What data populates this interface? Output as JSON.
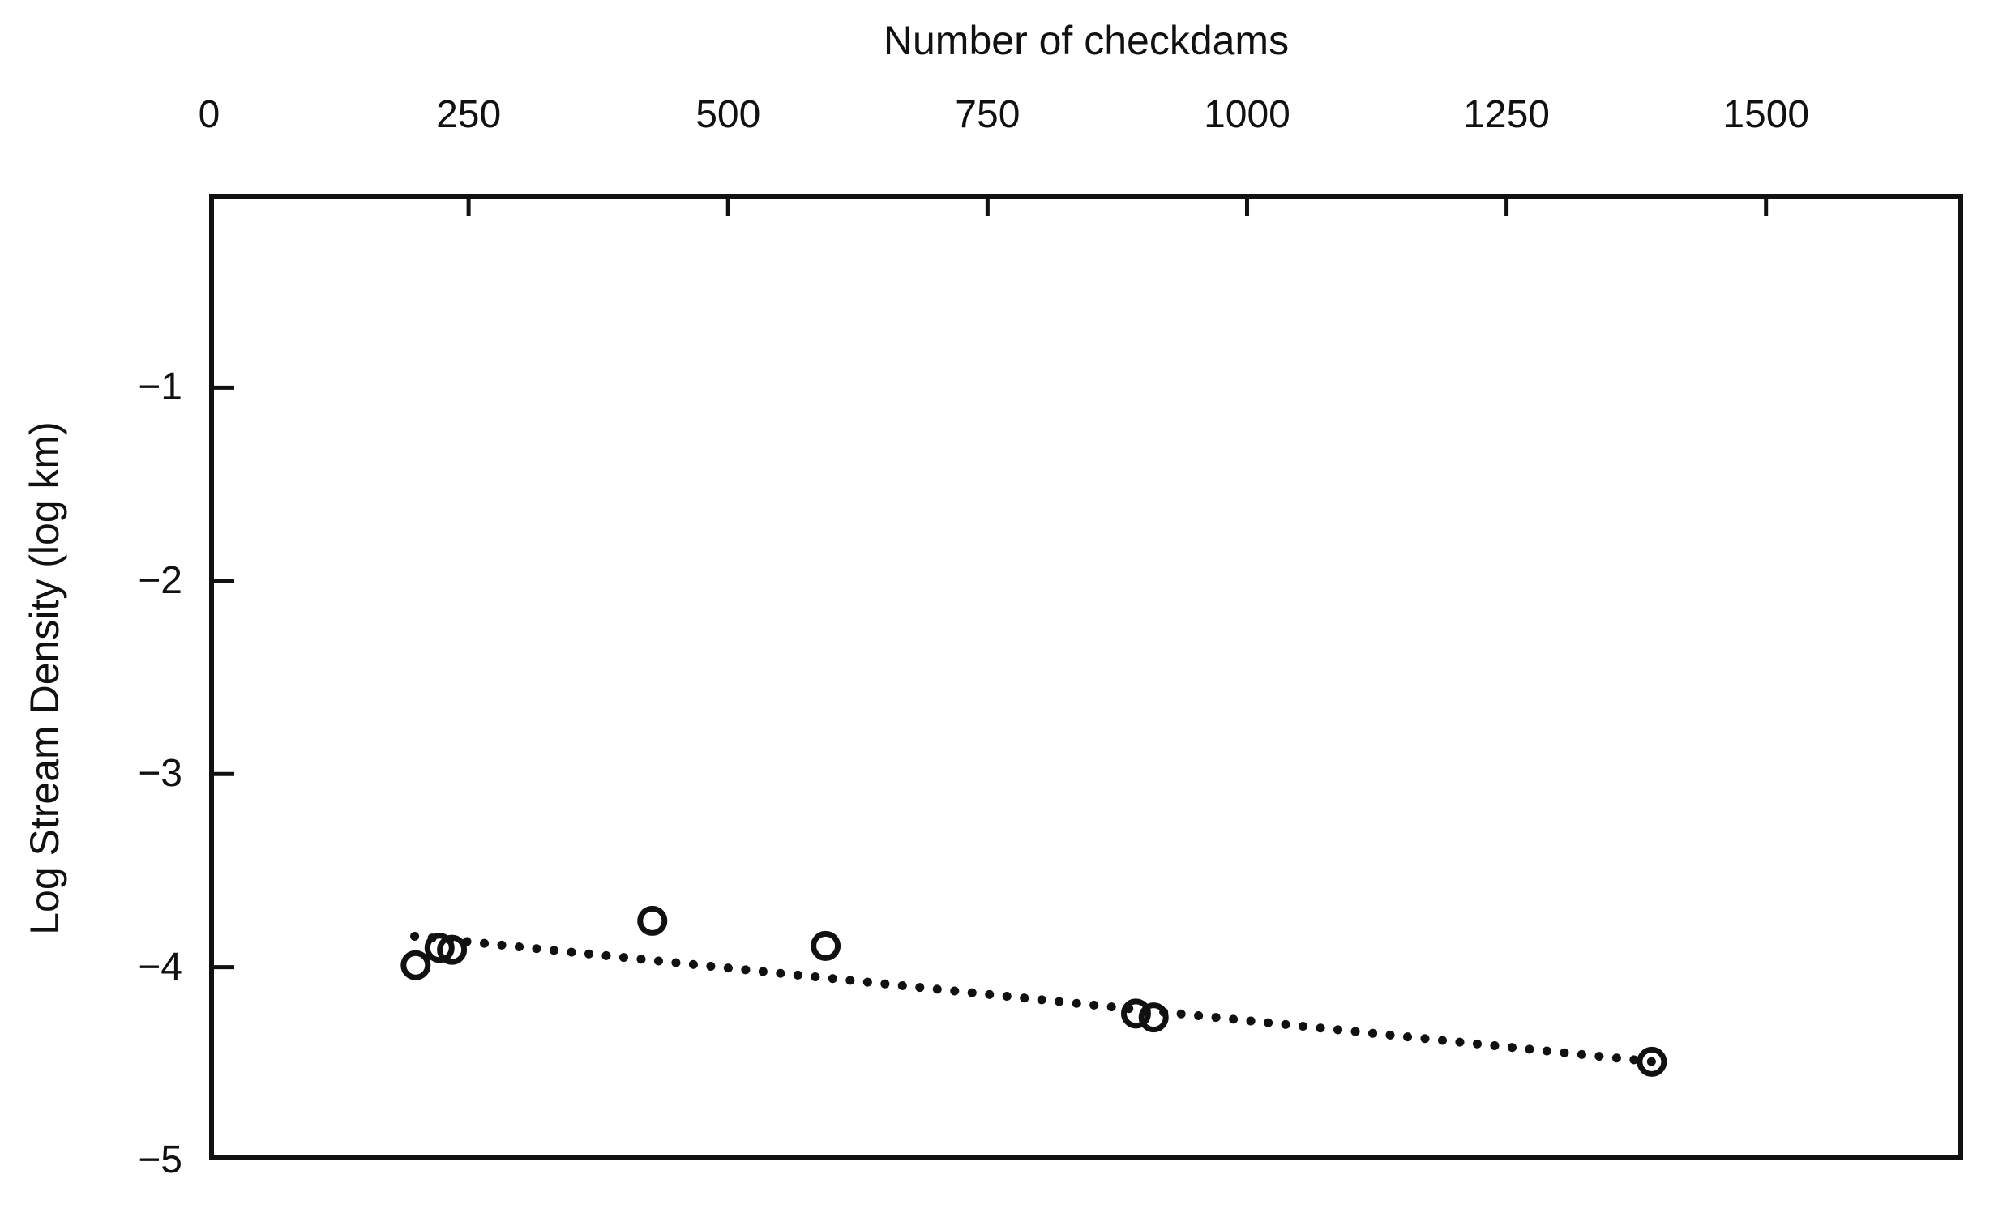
{
  "chart_data": {
    "type": "scatter",
    "title": "",
    "xlabel": "Number of checkdams",
    "ylabel": "Log Stream Density (log km)",
    "x_axis_position": "top",
    "grid": false,
    "legend": null,
    "marker": "open-circle",
    "xlim": [
      0,
      1690
    ],
    "ylim": [
      -5,
      0
    ],
    "x_ticks": [
      {
        "value": 0,
        "label": "0"
      },
      {
        "value": 250,
        "label": "250"
      },
      {
        "value": 500,
        "label": "500"
      },
      {
        "value": 750,
        "label": "750"
      },
      {
        "value": 1000,
        "label": "1000"
      },
      {
        "value": 1250,
        "label": "1250"
      },
      {
        "value": 1500,
        "label": "1500"
      }
    ],
    "y_ticks": [
      {
        "value": -1,
        "label": "−1"
      },
      {
        "value": -2,
        "label": "−2"
      },
      {
        "value": -3,
        "label": "−3"
      },
      {
        "value": -4,
        "label": "−4"
      },
      {
        "value": -5,
        "label": "−5"
      }
    ],
    "points": [
      {
        "x": 199,
        "y": -3.99
      },
      {
        "x": 222,
        "y": -3.9
      },
      {
        "x": 234,
        "y": -3.91
      },
      {
        "x": 427,
        "y": -3.76
      },
      {
        "x": 594,
        "y": -3.89
      },
      {
        "x": 893,
        "y": -4.24
      },
      {
        "x": 910,
        "y": -4.26
      },
      {
        "x": 1390,
        "y": -4.49
      }
    ],
    "trendline": {
      "style": "dotted",
      "x1": 198,
      "y1": -3.84,
      "x2": 1392,
      "y2": -4.49
    },
    "colors": {
      "ink": "#111111",
      "background": "#ffffff"
    }
  }
}
